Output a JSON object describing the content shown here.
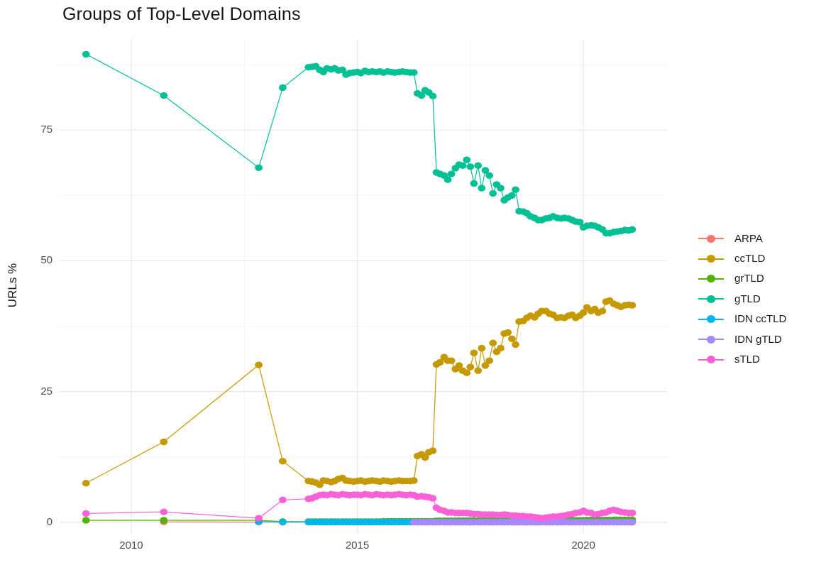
{
  "title": "Groups of Top-Level Domains",
  "y_axis": {
    "title": "URLs %",
    "ticks": [
      "0",
      "25",
      "50",
      "75"
    ],
    "tick_values": [
      0,
      25,
      50,
      75
    ],
    "minor_values": [
      12.5,
      37.5,
      62.5,
      87.5
    ],
    "range": [
      -1.5,
      92.4
    ]
  },
  "x_axis": {
    "title": "",
    "ticks": [
      "2010",
      "2015",
      "2020"
    ],
    "tick_values": [
      2010,
      2015,
      2020
    ],
    "minor_values": [
      2012.5,
      2017.5
    ],
    "range": [
      2008.4,
      2021.85
    ]
  },
  "grid_colors": {
    "major": "#e9e9e9",
    "minor": "#f4f4f4"
  },
  "chart_data": {
    "type": "scatter",
    "title": "Groups of Top-Level Domains",
    "xlabel": "",
    "ylabel": "URLs %",
    "xlim": [
      2008.4,
      2021.85
    ],
    "ylim": [
      -1.5,
      92.4
    ],
    "grid": true,
    "legend_position": "right",
    "x_dense": [
      2013.92,
      2014.0,
      2014.08,
      2014.17,
      2014.25,
      2014.33,
      2014.42,
      2014.5,
      2014.58,
      2014.67,
      2014.75,
      2014.83,
      2014.92,
      2015.0,
      2015.08,
      2015.17,
      2015.25,
      2015.33,
      2015.42,
      2015.5,
      2015.58,
      2015.67,
      2015.75,
      2015.83,
      2015.92,
      2016.0,
      2016.08,
      2016.17,
      2016.25,
      2016.33,
      2016.42,
      2016.5,
      2016.58,
      2016.67,
      2016.75,
      2016.83,
      2016.92,
      2017.0,
      2017.08,
      2017.17,
      2017.25,
      2017.33,
      2017.42,
      2017.5,
      2017.58,
      2017.67,
      2017.75,
      2017.83,
      2017.92,
      2018.0,
      2018.08,
      2018.17,
      2018.25,
      2018.33,
      2018.42,
      2018.5,
      2018.58,
      2018.67,
      2018.75,
      2018.83,
      2018.92,
      2019.0,
      2019.08,
      2019.17,
      2019.25,
      2019.33,
      2019.42,
      2019.5,
      2019.58,
      2019.67,
      2019.75,
      2019.83,
      2019.92,
      2020.0,
      2020.08,
      2020.17,
      2020.25,
      2020.33,
      2020.42,
      2020.5,
      2020.58,
      2020.67,
      2020.75,
      2020.83,
      2020.92,
      2021.0,
      2021.08
    ],
    "series": [
      {
        "name": "ARPA",
        "color": "#F8766D",
        "early_x": [
          2010.72,
          2012.82,
          2013.35
        ],
        "early_y": [
          0.1,
          0.05,
          0.05
        ],
        "dense_const": 0.05
      },
      {
        "name": "ccTLD",
        "color": "#C49A00",
        "early_x": [
          2009.0,
          2010.72,
          2012.82,
          2013.35
        ],
        "early_y": [
          7.5,
          15.4,
          30.1,
          11.7
        ],
        "dense_y": [
          7.9,
          7.8,
          7.6,
          7.2,
          8.0,
          7.9,
          7.7,
          7.9,
          8.3,
          8.5,
          8.0,
          7.9,
          7.8,
          7.9,
          8.0,
          7.8,
          7.9,
          8.0,
          7.9,
          7.8,
          8.0,
          7.9,
          7.8,
          7.9,
          8.0,
          7.9,
          7.9,
          7.9,
          8.0,
          12.7,
          13.0,
          12.4,
          13.4,
          13.7,
          30.2,
          30.6,
          31.6,
          30.9,
          30.9,
          29.3,
          30.0,
          29.0,
          28.6,
          29.7,
          32.4,
          29.0,
          33.3,
          30.0,
          30.9,
          34.3,
          32.6,
          33.3,
          36.1,
          36.3,
          35.1,
          34.0,
          38.4,
          38.5,
          39.1,
          39.5,
          39.2,
          39.9,
          40.4,
          40.4,
          39.9,
          39.7,
          39.1,
          39.2,
          39.1,
          39.5,
          39.7,
          39.1,
          39.5,
          40.1,
          41.1,
          40.4,
          40.8,
          40.1,
          40.4,
          42.2,
          42.4,
          41.8,
          41.5,
          41.2,
          41.5,
          41.6,
          41.5
        ]
      },
      {
        "name": "grTLD",
        "color": "#53B400",
        "early_x": [
          2009.0,
          2010.72,
          2012.82,
          2013.35
        ],
        "early_y": [
          0.4,
          0.4,
          0.4,
          0.15
        ],
        "dense_y": [
          0.15,
          0.15,
          0.15,
          0.15,
          0.15,
          0.15,
          0.15,
          0.15,
          0.15,
          0.15,
          0.15,
          0.15,
          0.15,
          0.15,
          0.15,
          0.15,
          0.15,
          0.15,
          0.15,
          0.15,
          0.2,
          0.2,
          0.2,
          0.2,
          0.2,
          0.2,
          0.2,
          0.2,
          0.2,
          0.2,
          0.2,
          0.2,
          0.2,
          0.2,
          0.3,
          0.3,
          0.3,
          0.3,
          0.3,
          0.3,
          0.35,
          0.35,
          0.35,
          0.35,
          0.35,
          0.35,
          0.35,
          0.35,
          0.35,
          0.4,
          0.4,
          0.4,
          0.4,
          0.4,
          0.4,
          0.4,
          0.4,
          0.4,
          0.4,
          0.4,
          0.4,
          0.4,
          0.4,
          0.4,
          0.4,
          0.4,
          0.4,
          0.4,
          0.4,
          0.4,
          0.4,
          0.4,
          0.4,
          0.4,
          0.45,
          0.45,
          0.45,
          0.45,
          0.45,
          0.45,
          0.45,
          0.5,
          0.5,
          0.5,
          0.5,
          0.5,
          0.5
        ]
      },
      {
        "name": "gTLD",
        "color": "#00C094",
        "early_x": [
          2009.0,
          2010.72,
          2012.82,
          2013.35
        ],
        "early_y": [
          89.5,
          81.6,
          67.8,
          83.1
        ],
        "dense_y": [
          87.0,
          87.1,
          87.2,
          86.5,
          86.1,
          86.8,
          86.6,
          86.8,
          86.4,
          86.5,
          85.6,
          85.9,
          86.0,
          86.1,
          85.9,
          86.3,
          86.1,
          86.2,
          86.1,
          86.2,
          86.0,
          86.2,
          86.1,
          86.0,
          86.1,
          86.2,
          86.1,
          86.0,
          86.0,
          82.0,
          81.6,
          82.6,
          82.2,
          81.5,
          66.9,
          66.6,
          66.3,
          65.5,
          66.6,
          67.7,
          68.4,
          68.2,
          69.3,
          68.0,
          64.8,
          68.2,
          63.9,
          67.3,
          66.3,
          62.9,
          64.6,
          63.9,
          61.6,
          62.1,
          62.5,
          63.6,
          59.5,
          59.4,
          59.1,
          58.5,
          58.2,
          57.8,
          57.8,
          58.1,
          58.2,
          58.5,
          58.2,
          58.1,
          58.2,
          58.1,
          57.8,
          57.5,
          57.4,
          56.4,
          56.7,
          56.8,
          56.7,
          56.4,
          56.0,
          55.3,
          55.3,
          55.5,
          55.6,
          55.7,
          55.9,
          55.8,
          56.0
        ]
      },
      {
        "name": "IDN ccTLD",
        "color": "#00B6EB",
        "early_x": [
          2012.82,
          2013.35
        ],
        "early_y": [
          0.15,
          0.05
        ],
        "dense_const": 0.08
      },
      {
        "name": "IDN gTLD",
        "color": "#A58AFF",
        "early_x": [],
        "early_y": [],
        "dense_const": 0.04,
        "dense_start_x": 2016.25
      },
      {
        "name": "sTLD",
        "color": "#FB61D7",
        "early_x": [
          2009.0,
          2010.72,
          2012.82,
          2013.35
        ],
        "early_y": [
          1.7,
          2.0,
          0.8,
          4.3
        ],
        "dense_y": [
          4.5,
          4.6,
          4.9,
          5.2,
          5.3,
          5.2,
          5.4,
          5.3,
          5.2,
          5.4,
          5.3,
          5.2,
          5.3,
          5.3,
          5.2,
          5.4,
          5.3,
          5.2,
          5.4,
          5.3,
          5.2,
          5.3,
          5.2,
          5.3,
          5.4,
          5.3,
          5.2,
          5.3,
          5.2,
          4.9,
          5.0,
          4.9,
          4.8,
          4.6,
          2.8,
          2.4,
          2.2,
          1.9,
          1.9,
          1.8,
          1.8,
          1.8,
          1.8,
          1.7,
          1.6,
          1.6,
          1.5,
          1.5,
          1.5,
          1.5,
          1.4,
          1.4,
          1.5,
          1.4,
          1.3,
          1.3,
          1.2,
          1.2,
          1.1,
          1.1,
          1.0,
          0.9,
          0.8,
          0.9,
          1.0,
          1.1,
          1.1,
          1.2,
          1.3,
          1.5,
          1.6,
          1.8,
          1.9,
          2.2,
          1.9,
          1.8,
          1.5,
          1.6,
          1.8,
          1.9,
          2.2,
          2.4,
          2.2,
          2.0,
          1.9,
          1.8,
          1.8
        ]
      }
    ]
  }
}
